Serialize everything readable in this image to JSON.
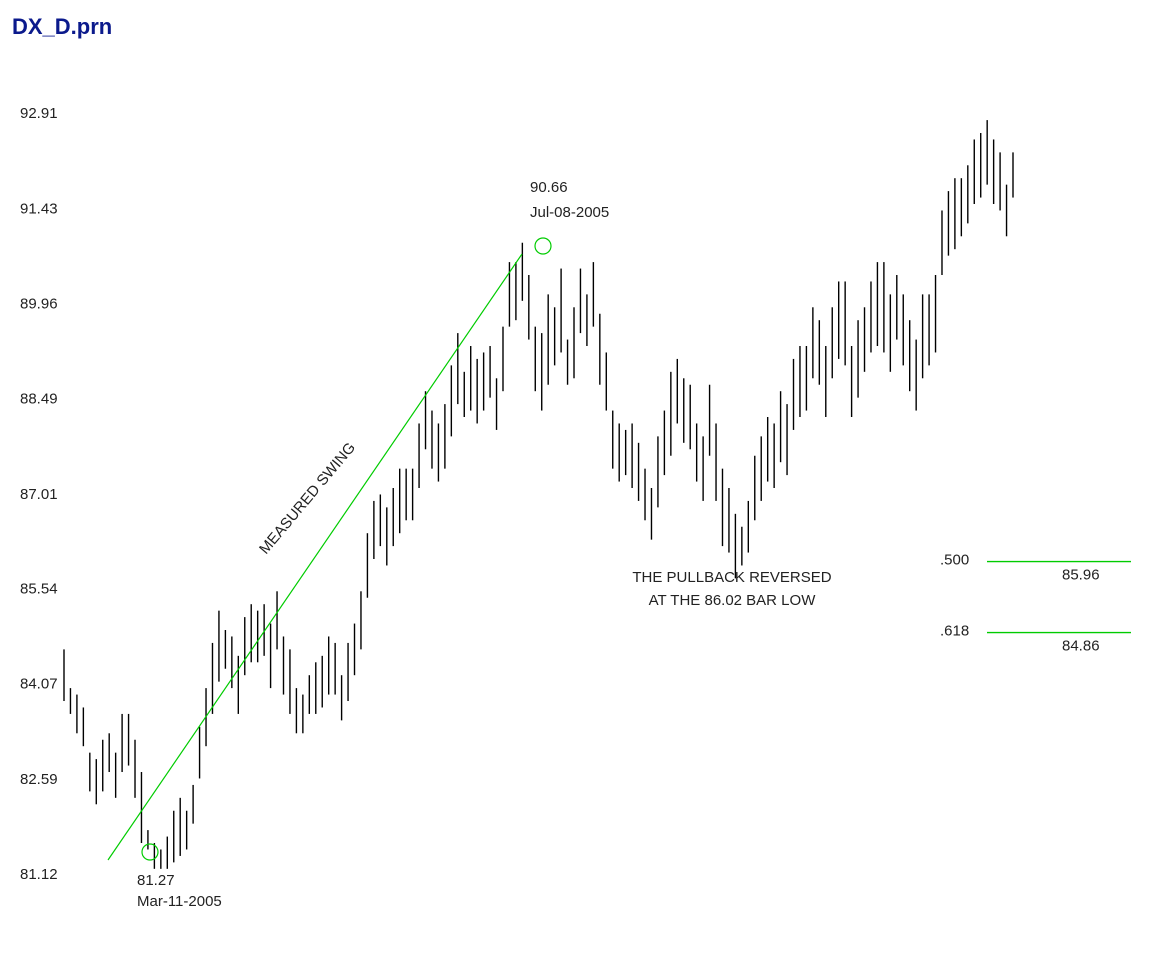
{
  "chart_data": {
    "type": "bar",
    "title": "DX_D.prn",
    "y_ticks": [
      "92.91",
      "91.43",
      "89.96",
      "88.49",
      "87.01",
      "85.54",
      "84.07",
      "82.59",
      "81.12"
    ],
    "ylim": [
      81.12,
      92.91
    ],
    "grid": false,
    "bar_color": "#000000",
    "annotation_color": "#00cc00",
    "ohlc_highs": [
      84.6,
      84.0,
      83.9,
      83.7,
      83.0,
      82.9,
      83.2,
      83.3,
      83.0,
      83.6,
      83.6,
      83.2,
      82.7,
      81.8,
      81.6,
      81.5,
      81.7,
      82.1,
      82.3,
      82.1,
      82.5,
      83.4,
      84.0,
      84.7,
      85.2,
      84.9,
      84.8,
      84.5,
      85.1,
      85.3,
      85.2,
      85.3,
      85.0,
      85.5,
      84.8,
      84.6,
      84.0,
      83.9,
      84.2,
      84.4,
      84.5,
      84.8,
      84.7,
      84.2,
      84.7,
      85.0,
      85.5,
      86.4,
      86.9,
      87.0,
      86.8,
      87.1,
      87.4,
      87.4,
      87.4,
      88.1,
      88.6,
      88.3,
      88.1,
      88.4,
      89.0,
      89.5,
      88.9,
      89.3,
      89.1,
      89.2,
      89.3,
      88.8,
      89.6,
      90.6,
      90.6,
      90.9,
      90.4,
      89.6,
      89.5,
      90.1,
      89.9,
      90.5,
      89.4,
      89.9,
      90.5,
      90.1,
      90.6,
      89.8,
      89.2,
      88.3,
      88.1,
      88.0,
      88.1,
      87.8,
      87.4,
      87.1,
      87.9,
      88.3,
      88.9,
      89.1,
      88.8,
      88.7,
      88.1,
      87.9,
      88.7,
      88.1,
      87.4,
      87.1,
      86.7,
      86.5,
      86.9,
      87.6,
      87.9,
      88.2,
      88.1,
      88.6,
      88.4,
      89.1,
      89.3,
      89.3,
      89.9,
      89.7,
      89.3,
      89.9,
      90.3,
      90.3,
      89.3,
      89.7,
      89.9,
      90.3,
      90.6,
      90.6,
      90.1,
      90.4,
      90.1,
      89.7,
      89.4,
      90.1,
      90.1,
      90.4,
      91.4,
      91.7,
      91.9,
      91.9,
      92.1,
      92.5,
      92.6,
      92.8,
      92.5,
      92.3,
      91.8,
      92.3
    ],
    "ohlc_lows": [
      83.8,
      83.6,
      83.3,
      83.1,
      82.4,
      82.2,
      82.4,
      82.7,
      82.3,
      82.7,
      82.8,
      82.3,
      81.6,
      81.5,
      81.2,
      81.2,
      81.2,
      81.3,
      81.4,
      81.5,
      81.9,
      82.6,
      83.1,
      83.6,
      84.1,
      84.3,
      84.0,
      83.6,
      84.2,
      84.4,
      84.4,
      84.5,
      84.0,
      84.6,
      83.9,
      83.6,
      83.3,
      83.3,
      83.6,
      83.6,
      83.7,
      83.9,
      83.9,
      83.5,
      83.8,
      84.2,
      84.6,
      85.4,
      86.0,
      86.2,
      85.9,
      86.2,
      86.4,
      86.6,
      86.6,
      87.1,
      87.7,
      87.4,
      87.2,
      87.4,
      87.9,
      88.4,
      88.2,
      88.3,
      88.1,
      88.3,
      88.5,
      88.0,
      88.6,
      89.6,
      89.7,
      90.0,
      89.4,
      88.6,
      88.3,
      88.7,
      89.0,
      89.2,
      88.7,
      88.8,
      89.5,
      89.3,
      89.6,
      88.7,
      88.3,
      87.4,
      87.2,
      87.3,
      87.1,
      86.9,
      86.6,
      86.3,
      86.8,
      87.3,
      87.6,
      88.1,
      87.8,
      87.7,
      87.2,
      86.9,
      87.6,
      86.9,
      86.2,
      86.1,
      85.7,
      85.9,
      86.1,
      86.6,
      86.9,
      87.2,
      87.1,
      87.5,
      87.3,
      88.0,
      88.2,
      88.3,
      88.8,
      88.7,
      88.2,
      88.8,
      89.1,
      89.0,
      88.2,
      88.5,
      88.9,
      89.2,
      89.3,
      89.2,
      88.9,
      89.4,
      89.0,
      88.6,
      88.3,
      88.8,
      89.0,
      89.2,
      90.4,
      90.7,
      90.8,
      91.0,
      91.2,
      91.5,
      91.6,
      91.8,
      91.5,
      91.4,
      91.0,
      91.6
    ],
    "annotations": {
      "swing_label": "MEASURED SWING",
      "low_price": "81.27",
      "low_date": "Mar-11-2005",
      "high_price": "90.66",
      "high_date": "Jul-08-2005",
      "pullback_line1": "THE PULLBACK REVERSED",
      "pullback_line2": "AT THE 86.02 BAR LOW",
      "fib_levels": [
        {
          "ratio": ".500",
          "price": "85.96",
          "value": 85.96
        },
        {
          "ratio": ".618",
          "price": "84.86",
          "value": 84.86
        }
      ]
    }
  }
}
